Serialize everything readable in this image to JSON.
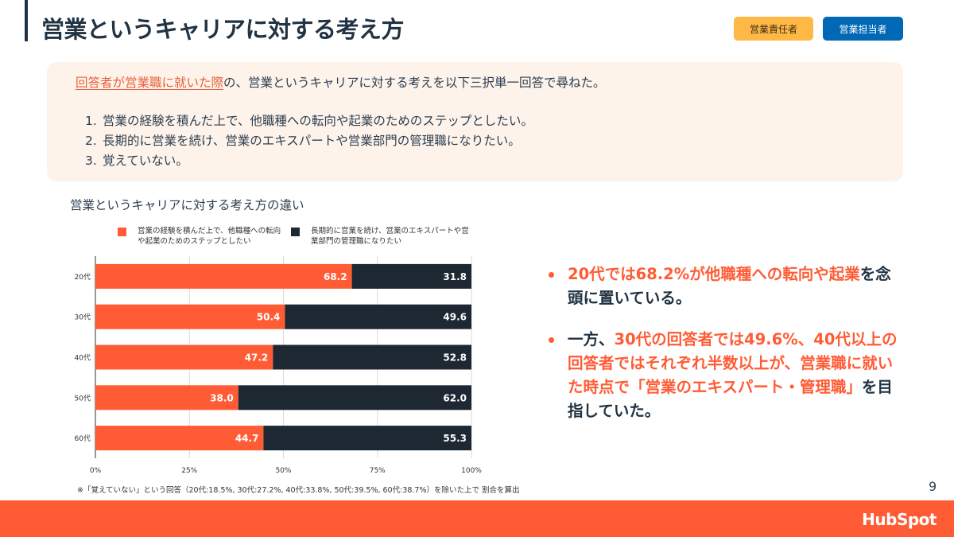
{
  "header": {
    "title": "営業というキャリアに対する考え方",
    "tags": [
      {
        "label": "営業責任者",
        "color": "#ffb845"
      },
      {
        "label": "営業担当者",
        "color": "#0068b5"
      }
    ]
  },
  "intro": {
    "question_highlight": "回答者が営業職に就いた際",
    "question_rest": "の、営業というキャリアに対する考えを以下三択単一回答で尋ねた。",
    "options": [
      {
        "num": "1.",
        "text": "営業の経験を積んだ上で、他職種への転向や起業のためのステップとしたい。"
      },
      {
        "num": "2.",
        "text": "長期的に営業を続け、営業のエキスパートや営業部門の管理職になりたい。"
      },
      {
        "num": "3.",
        "text": "覚えていない。"
      }
    ]
  },
  "chart_data": {
    "type": "bar",
    "orientation": "horizontal",
    "stacked": true,
    "title": "営業というキャリアに対する考え方の違い",
    "categories": [
      "20代",
      "30代",
      "40代",
      "50代",
      "60代"
    ],
    "series": [
      {
        "name": "営業の経験を積んだ上で、他職種への転向や起業のためのステップとしたい",
        "color": "#ff5c35",
        "values": [
          68.2,
          50.4,
          47.2,
          38.0,
          44.7
        ]
      },
      {
        "name": "長期的に営業を続け、営業のエキスパートや営業部門の管理職になりたい",
        "color": "#1d2833",
        "values": [
          31.8,
          49.6,
          52.8,
          62.0,
          55.3
        ]
      }
    ],
    "xlim": [
      0,
      100
    ],
    "xticks": [
      "0%",
      "25%",
      "50%",
      "75%",
      "100%"
    ],
    "grid": true,
    "legend_position": "top",
    "footnote": "※「覚えていない」という回答（20代:18.5%, 30代:27.2%, 40代:33.8%, 50代:39.5%, 60代:38.7%）を除いた上で 割合を算出"
  },
  "insights": {
    "b1": {
      "p1": "20代では68.2%が他職種への転向や起業",
      "p2": "を念頭に置いている。"
    },
    "b2": {
      "p1": "一方、",
      "p2": "30代の回答者では49.6%、40代以上の回答者ではそれぞれ半数以上が、営業職に就いた時点で「営業のエキスパート・管理職」",
      "p3": "を目指していた。"
    }
  },
  "page_number": "9",
  "footer": {
    "logo": "HubSpot"
  }
}
